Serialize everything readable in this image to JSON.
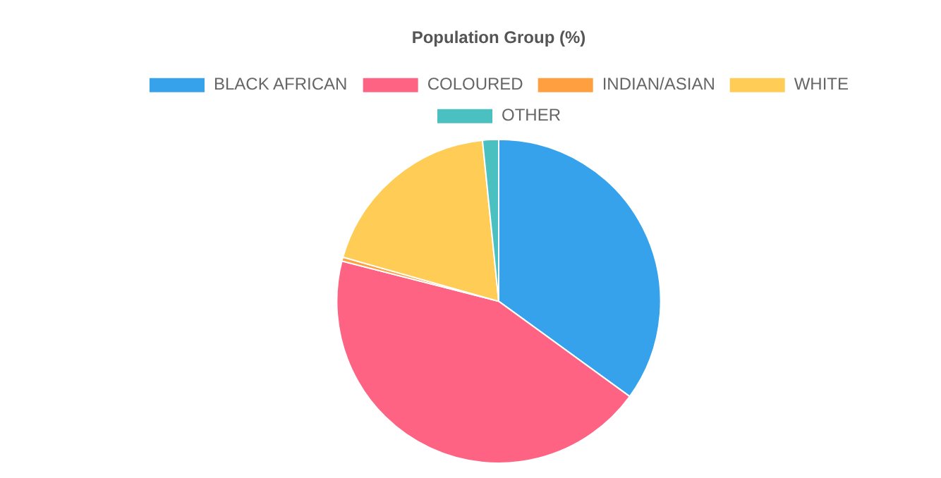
{
  "chart_data": {
    "type": "pie",
    "title": "Population Group (%)",
    "categories": [
      "BLACK AFRICAN",
      "COLOURED",
      "INDIAN/ASIAN",
      "WHITE",
      "OTHER"
    ],
    "values": [
      35.0,
      44.0,
      0.4,
      19.0,
      1.6
    ],
    "colors": [
      "#36a2eb",
      "#ff6384",
      "#ff9f40",
      "#ffcd56",
      "#4bc0c0"
    ],
    "legend": "top"
  }
}
